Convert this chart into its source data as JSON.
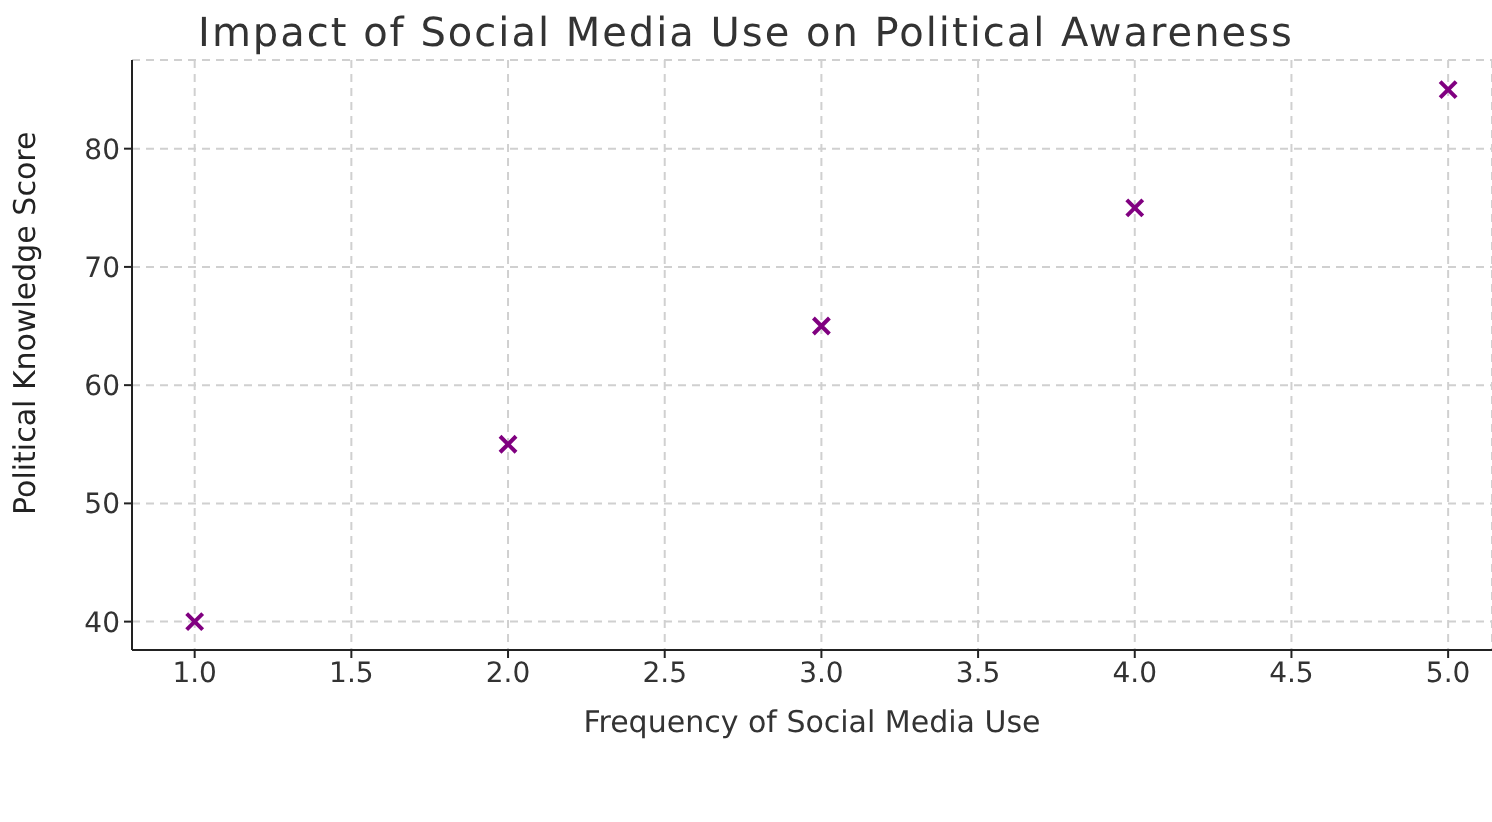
{
  "chart_data": {
    "type": "scatter",
    "title": "Impact of Social Media Use on Political Awareness",
    "xlabel": "Frequency of Social Media Use",
    "ylabel": "Political Knowledge Score",
    "x": [
      1,
      2,
      3,
      4,
      5
    ],
    "series": [
      {
        "color": "#800080",
        "values": [
          40,
          55,
          65,
          75,
          85
        ]
      }
    ],
    "xlim": [
      0.8,
      5.14
    ],
    "xticks": [
      {
        "value": 1,
        "label": "1.0"
      },
      {
        "value": 1.5,
        "label": "1.5"
      },
      {
        "value": 2,
        "label": "2.0"
      },
      {
        "value": 2.5,
        "label": "2.5"
      },
      {
        "value": 3,
        "label": "3.0"
      },
      {
        "value": 3.5,
        "label": "3.5"
      },
      {
        "value": 4,
        "label": "4.0"
      },
      {
        "value": 4.5,
        "label": "4.5"
      },
      {
        "value": 5,
        "label": "5.0"
      }
    ],
    "ylim": [
      37.6,
      87.5
    ],
    "yticks": [
      40,
      50,
      60,
      70,
      80
    ],
    "grid": true,
    "marker": "cross"
  }
}
